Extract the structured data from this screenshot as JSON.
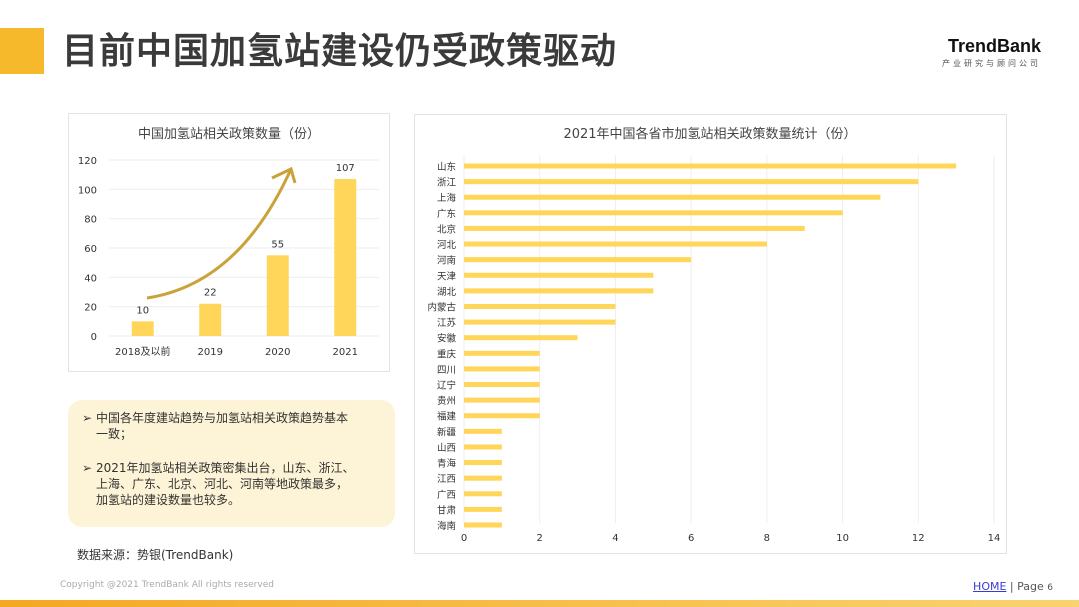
{
  "header": {
    "title": "目前中国加氢站建设仍受政策驱动",
    "logo_name": "TrendBank",
    "logo_sub": "产业研究与顾问公司"
  },
  "colors": {
    "accent": "#f6b92b",
    "bar": "#ffd55a",
    "arrow": "#c9a23a"
  },
  "chart_data": [
    {
      "type": "bar",
      "title": "中国加氢站相关政策数量（份）",
      "categories": [
        "2018及以前",
        "2019",
        "2020",
        "2021"
      ],
      "values": [
        10,
        22,
        55,
        107
      ],
      "ylim": [
        0,
        120
      ],
      "yticks": [
        0,
        20,
        40,
        60,
        80,
        100,
        120
      ],
      "grid": true,
      "data_labels": true,
      "annotation": "upward-trend-arrow"
    },
    {
      "type": "bar",
      "orientation": "horizontal",
      "title": "2021年中国各省市加氢站相关政策数量统计（份）",
      "categories": [
        "山东",
        "浙江",
        "上海",
        "广东",
        "北京",
        "河北",
        "河南",
        "天津",
        "湖北",
        "内蒙古",
        "江苏",
        "安徽",
        "重庆",
        "四川",
        "辽宁",
        "贵州",
        "福建",
        "新疆",
        "山西",
        "青海",
        "江西",
        "广西",
        "甘肃",
        "海南"
      ],
      "values": [
        13,
        12,
        11,
        10,
        9,
        8,
        6,
        5,
        5,
        4,
        4,
        3,
        2,
        2,
        2,
        2,
        2,
        1,
        1,
        1,
        1,
        1,
        1,
        1
      ],
      "xlim": [
        0,
        14
      ],
      "xticks": [
        0,
        2,
        4,
        6,
        8,
        10,
        12,
        14
      ],
      "grid": true
    }
  ],
  "notes": [
    "中国各年度建站趋势与加氢站相关政策趋势基本一致；",
    "2021年加氢站相关政策密集出台，山东、浙江、上海、广东、北京、河北、河南等地政策最多，加氢站的建设数量也较多。"
  ],
  "source": "数据来源：势银(TrendBank)",
  "footer": {
    "copyright": "Copyright @2021 TrendBank All rights reserved",
    "home": "HOME",
    "page_label": "| Page",
    "page_number": "6"
  }
}
